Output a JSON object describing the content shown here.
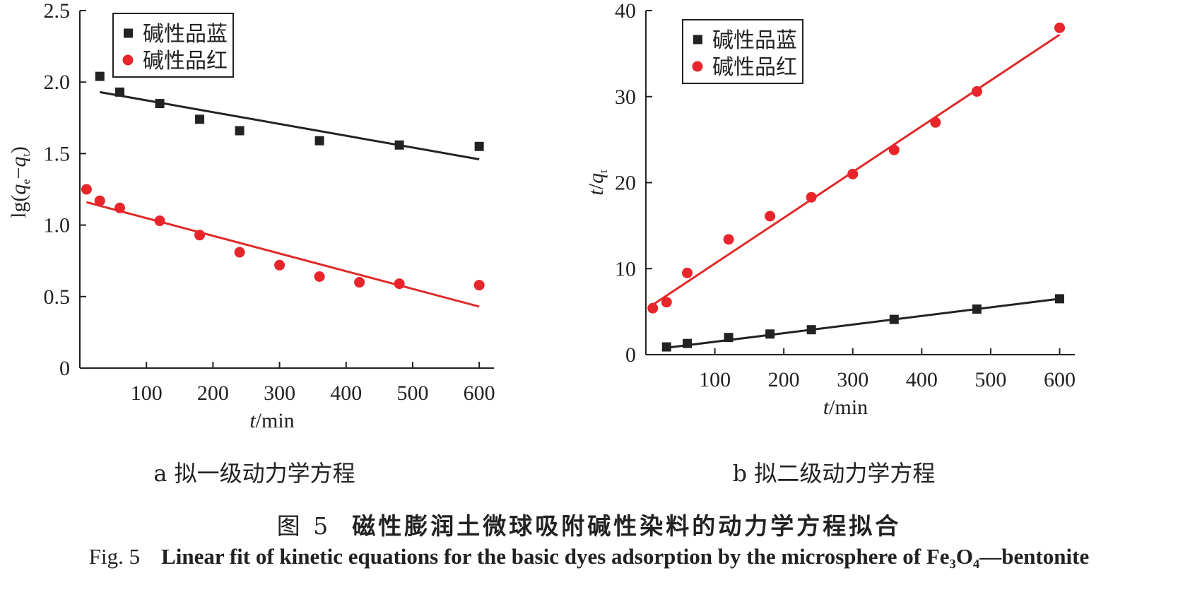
{
  "figure": {
    "cn_label": "图 5",
    "cn_caption": "磁性膨润土微球吸附碱性染料的动力学方程拟合",
    "en_label": "Fig. 5",
    "en_caption": "Linear fit of kinetic equations for the basic dyes adsorption by the microsphere of Fe₃O₄—bentonite"
  },
  "colors": {
    "blue_series": "#222222",
    "red_series": "#e8252b",
    "red_line": "#e02a2a"
  },
  "chart_data": [
    {
      "type": "scatter",
      "subcaption": "a 拟一级动力学方程",
      "xlabel": "t/min",
      "ylabel": "lg(qe−qt)",
      "xlim": [
        0,
        620
      ],
      "ylim": [
        0,
        2.5
      ],
      "xticks": [
        "100",
        "200",
        "300",
        "400",
        "500",
        "600"
      ],
      "yticks": [
        "0",
        "0.5",
        "1.0",
        "1.5",
        "2.0",
        "2.5"
      ],
      "legend": "top-left",
      "series": [
        {
          "name": "碱性品蓝",
          "marker": "square",
          "x": [
            30,
            60,
            120,
            180,
            240,
            360,
            480,
            600
          ],
          "y": [
            2.04,
            1.93,
            1.85,
            1.74,
            1.66,
            1.59,
            1.56,
            1.55
          ],
          "fit": [
            [
              30,
              1.93
            ],
            [
              600,
              1.46
            ]
          ]
        },
        {
          "name": "碱性品红",
          "marker": "circle",
          "x": [
            10,
            30,
            60,
            120,
            180,
            240,
            300,
            360,
            420,
            480,
            600
          ],
          "y": [
            1.25,
            1.17,
            1.12,
            1.03,
            0.93,
            0.81,
            0.72,
            0.64,
            0.6,
            0.59,
            0.58
          ],
          "fit": [
            [
              10,
              1.16
            ],
            [
              600,
              0.43
            ]
          ]
        }
      ]
    },
    {
      "type": "scatter",
      "subcaption": "b 拟二级动力学方程",
      "xlabel": "t/min",
      "ylabel": "t/qt",
      "xlim": [
        0,
        620
      ],
      "ylim": [
        0,
        40
      ],
      "xticks": [
        "100",
        "200",
        "300",
        "400",
        "500",
        "600"
      ],
      "yticks": [
        "0",
        "10",
        "20",
        "30",
        "40"
      ],
      "legend": "top-left",
      "series": [
        {
          "name": "碱性品蓝",
          "marker": "square",
          "x": [
            30,
            60,
            120,
            180,
            240,
            360,
            480,
            600
          ],
          "y": [
            0.9,
            1.3,
            2.0,
            2.4,
            2.9,
            4.1,
            5.3,
            6.5
          ],
          "fit": [
            [
              30,
              0.8
            ],
            [
              600,
              6.5
            ]
          ]
        },
        {
          "name": "碱性品红",
          "marker": "circle",
          "x": [
            10,
            30,
            60,
            120,
            180,
            240,
            300,
            360,
            420,
            480,
            600
          ],
          "y": [
            5.4,
            6.1,
            9.5,
            13.4,
            16.1,
            18.3,
            21.0,
            23.8,
            27.0,
            30.6,
            38.0
          ],
          "fit": [
            [
              10,
              5.8
            ],
            [
              600,
              37.2
            ]
          ]
        }
      ]
    }
  ]
}
